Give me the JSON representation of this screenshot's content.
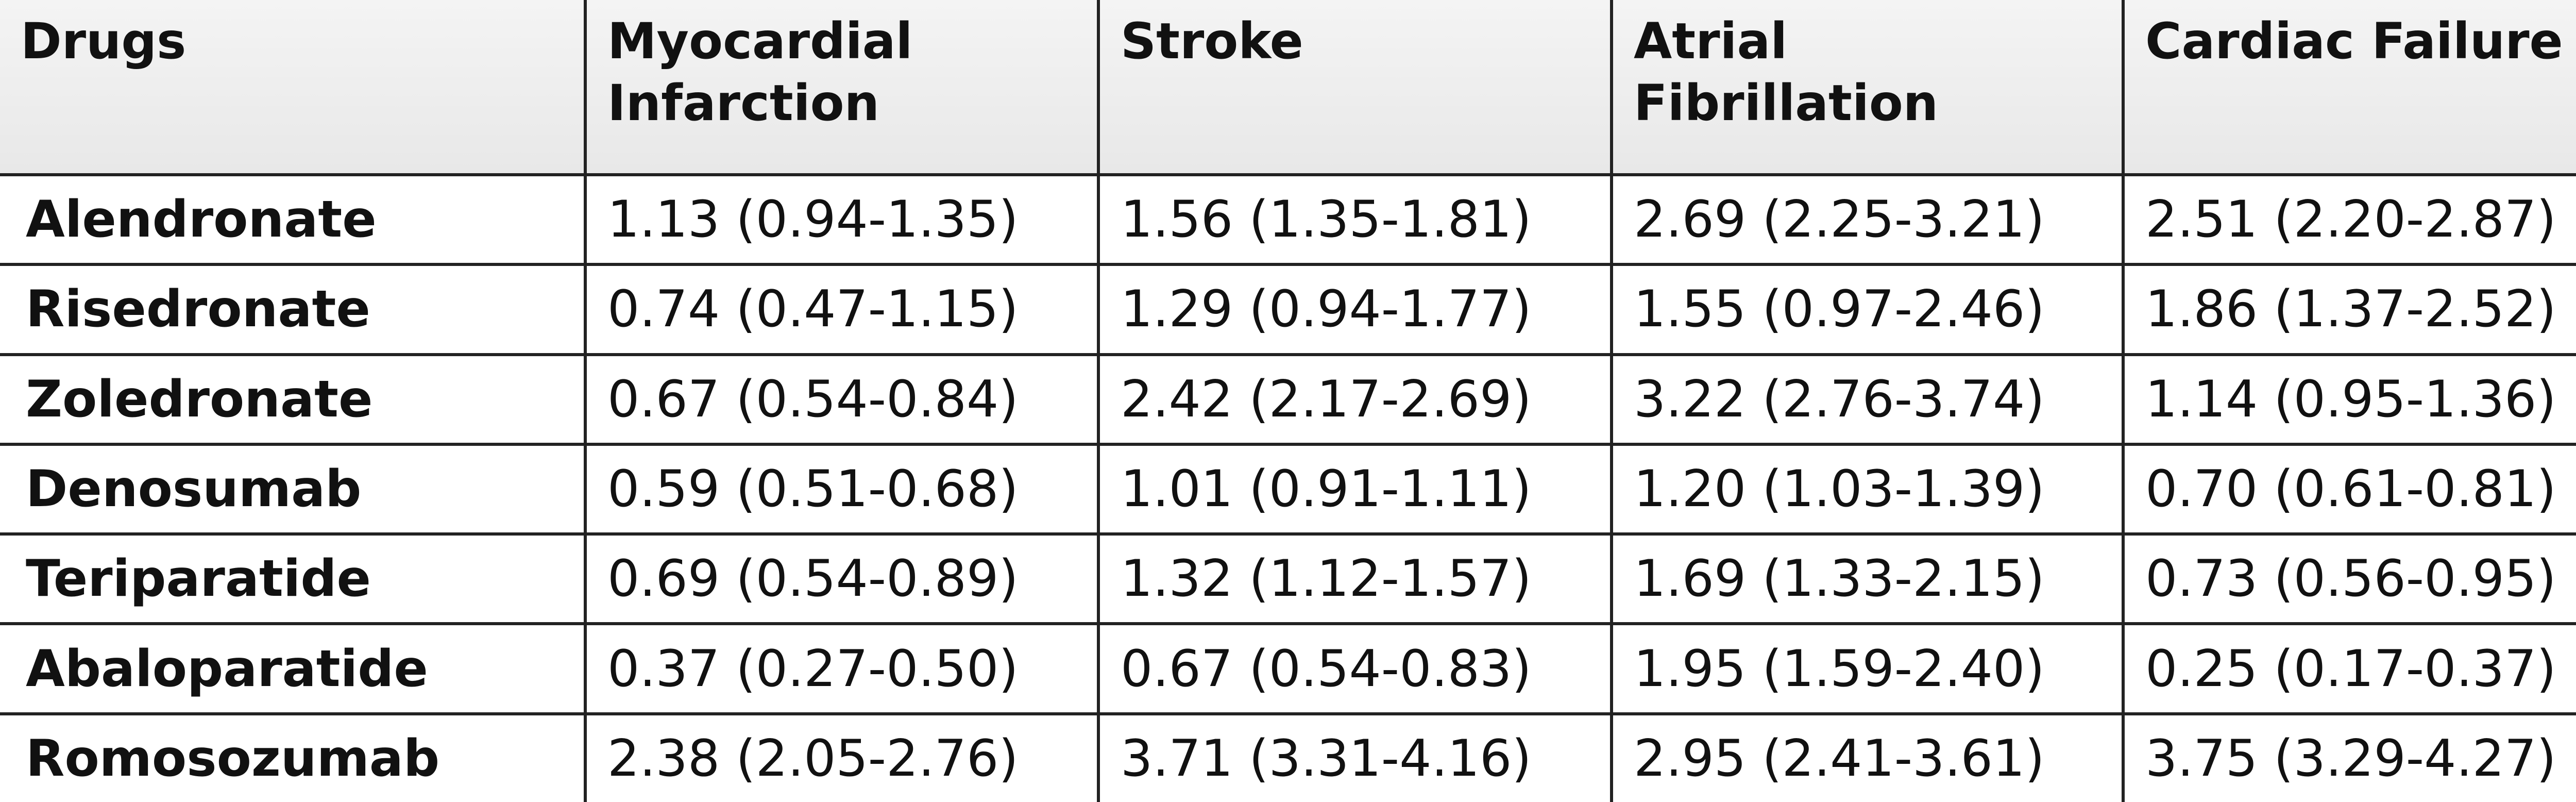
{
  "table": {
    "header": [
      "Drugs",
      "Myocardial Infarction",
      "Stroke",
      "Atrial Fibrillation",
      "Cardiac Failure"
    ],
    "rows": [
      [
        "Alendronate",
        "1.13 (0.94-1.35)",
        "1.56 (1.35-1.81)",
        "2.69 (2.25-3.21)",
        "2.51 (2.20-2.87)"
      ],
      [
        "Risedronate",
        "0.74 (0.47-1.15)",
        "1.29 (0.94-1.77)",
        "1.55 (0.97-2.46)",
        "1.86 (1.37-2.52)"
      ],
      [
        "Zoledronate",
        "0.67 (0.54-0.84)",
        "2.42 (2.17-2.69)",
        "3.22 (2.76-3.74)",
        "1.14 (0.95-1.36)"
      ],
      [
        "Denosumab",
        "0.59 (0.51-0.68)",
        "1.01 (0.91-1.11)",
        "1.20 (1.03-1.39)",
        "0.70 (0.61-0.81)"
      ],
      [
        "Teriparatide",
        "0.69 (0.54-0.89)",
        "1.32 (1.12-1.57)",
        "1.69 (1.33-2.15)",
        "0.73 (0.56-0.95)"
      ],
      [
        "Abaloparatide",
        "0.37 (0.27-0.50)",
        "0.67 (0.54-0.83)",
        "1.95 (1.59-2.40)",
        "0.25 (0.17-0.37)"
      ],
      [
        "Romosozumab",
        "2.38 (2.05-2.76)",
        "3.71 (3.31-4.16)",
        "2.95 (2.41-3.61)",
        "3.75 (3.29-4.27)"
      ]
    ]
  }
}
